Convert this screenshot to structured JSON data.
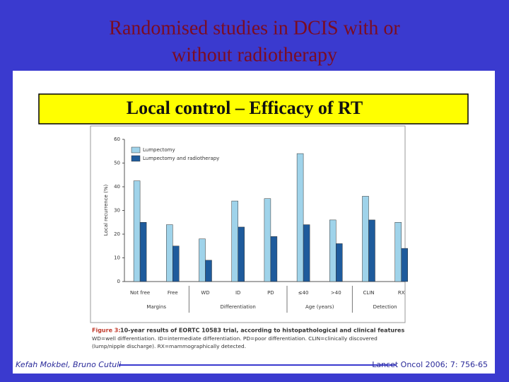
{
  "slide": {
    "title_lines": [
      "Randomised studies in DCIS with or",
      "without radiotherapy"
    ],
    "box_text": "Local control – Efficacy of RT"
  },
  "chart_data": {
    "type": "bar",
    "groups": [
      {
        "label": "Margins",
        "categories": [
          "Not free",
          "Free"
        ]
      },
      {
        "label": "Differentiation",
        "categories": [
          "WD",
          "ID",
          "PD"
        ]
      },
      {
        "label": "Age (years)",
        "categories": [
          "≤40",
          ">40"
        ]
      },
      {
        "label": "Detection",
        "categories": [
          "CLIN",
          "RX"
        ]
      }
    ],
    "series": [
      {
        "name": "Lumpectomy",
        "color": "#9fd3ea",
        "values": [
          42.5,
          24,
          18,
          34,
          35,
          54,
          26,
          36,
          25
        ]
      },
      {
        "name": "Lumpectomy and radiotherapy",
        "color": "#1e5b9c",
        "values": [
          25,
          15,
          9,
          23,
          19,
          24,
          16,
          26,
          14
        ]
      }
    ],
    "ylabel": "Local recurrence (%)",
    "ylim": [
      0,
      60
    ],
    "yticks": [
      0,
      10,
      20,
      30,
      40,
      50,
      60
    ],
    "caption": {
      "label": "Figure 3:",
      "text": "10-year results of EORTC 10583 trial, according to histopathological and clinical features",
      "note_lines": [
        "WD=well differentiation. ID=intermediate differentiation. PD=poor differentiation. CLIN=clinically discovered",
        "(lump/nipple discharge). RX=mammographically detected."
      ]
    }
  },
  "footer": {
    "authors": "Kefah Mokbel, Bruno Cutuli",
    "source": "Lancet Oncol 2006; 7: 756-65"
  }
}
